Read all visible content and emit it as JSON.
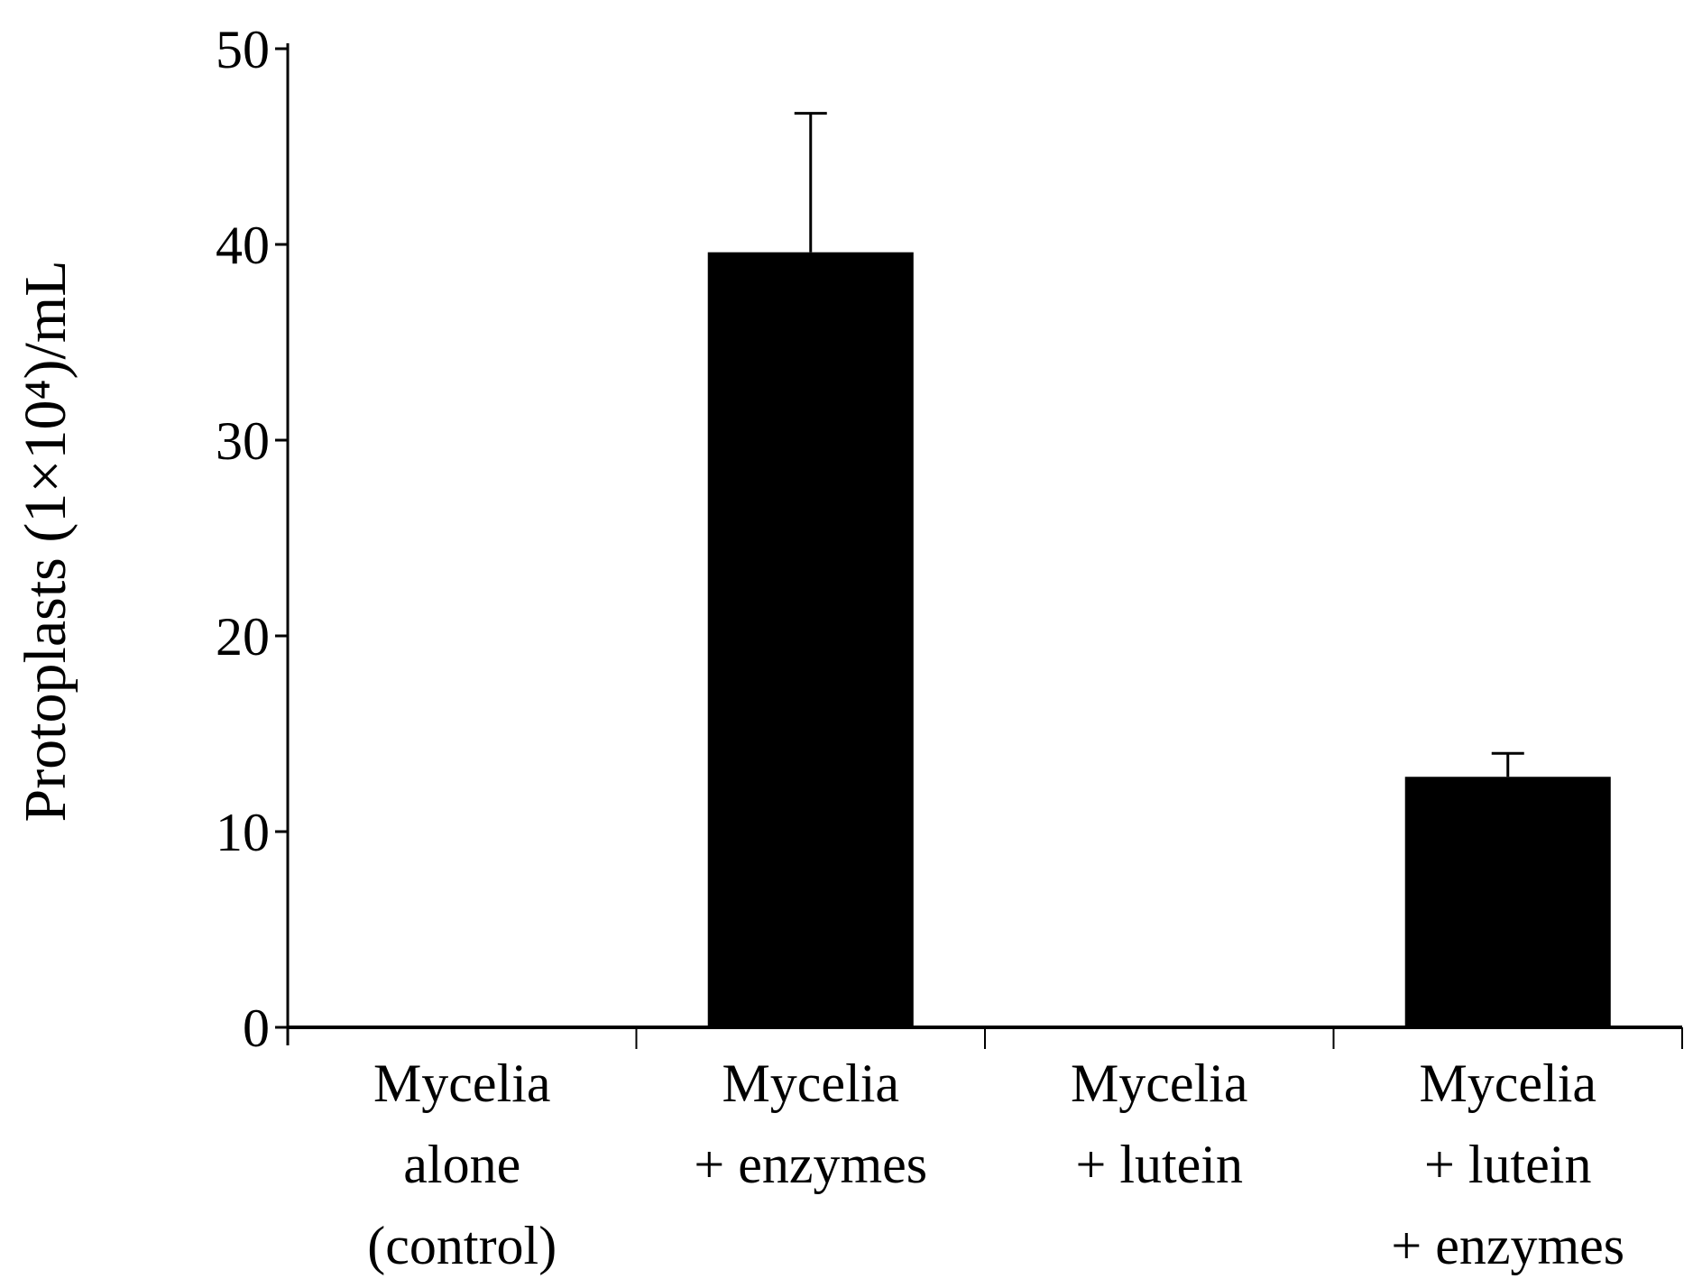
{
  "chart_data": {
    "type": "bar",
    "ylabel": "Protoplasts (1×10⁴)/mL",
    "categories": [
      "Mycelia\nalone\n(control)",
      "Mycelia\n+ enzymes",
      "Mycelia\n+ lutein",
      "Mycelia\n+ lutein\n+ enzymes"
    ],
    "values": [
      0,
      39.6,
      0,
      12.8
    ],
    "errors": [
      null,
      7.1,
      null,
      1.2
    ],
    "color": "#000000",
    "ylim": [
      0,
      50
    ],
    "yticks": [
      0,
      10,
      20,
      30,
      40,
      50
    ],
    "grid": false
  }
}
